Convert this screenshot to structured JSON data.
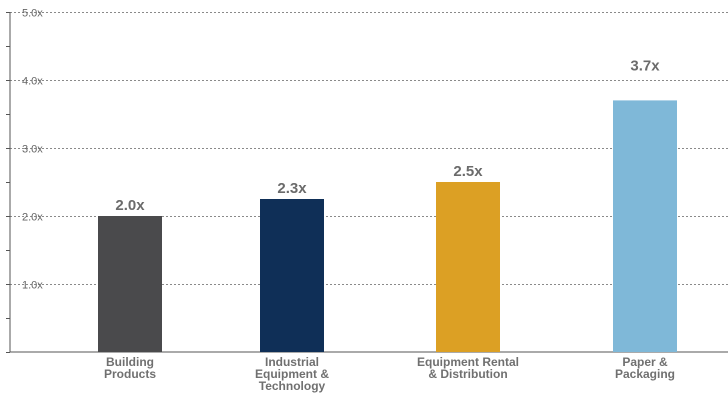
{
  "chart_data": {
    "type": "bar",
    "title": "",
    "xlabel": "",
    "ylabel": "",
    "ylim": [
      0,
      5
    ],
    "grid": true,
    "categories": [
      [
        "Building",
        "Products"
      ],
      [
        "Industrial",
        "Equipment &",
        "Technology"
      ],
      [
        "Equipment Rental",
        "& Distribution"
      ],
      [
        "Paper &",
        "Packaging"
      ]
    ],
    "values": [
      2.0,
      2.25,
      2.5,
      3.7
    ],
    "data_labels": [
      "2.0x",
      "2.3x",
      "2.5x",
      "3.7x"
    ],
    "y_ticks": [
      {
        "value": 1,
        "label": "1.0x"
      },
      {
        "value": 2,
        "label": "2.0x"
      },
      {
        "value": 3,
        "label": "3.0x"
      },
      {
        "value": 4,
        "label": "4.0x"
      },
      {
        "value": 5,
        "label": "5.0x"
      }
    ],
    "colors": [
      "#4a4a4c",
      "#0f2f57",
      "#dca024",
      "#7fb8d8"
    ]
  }
}
